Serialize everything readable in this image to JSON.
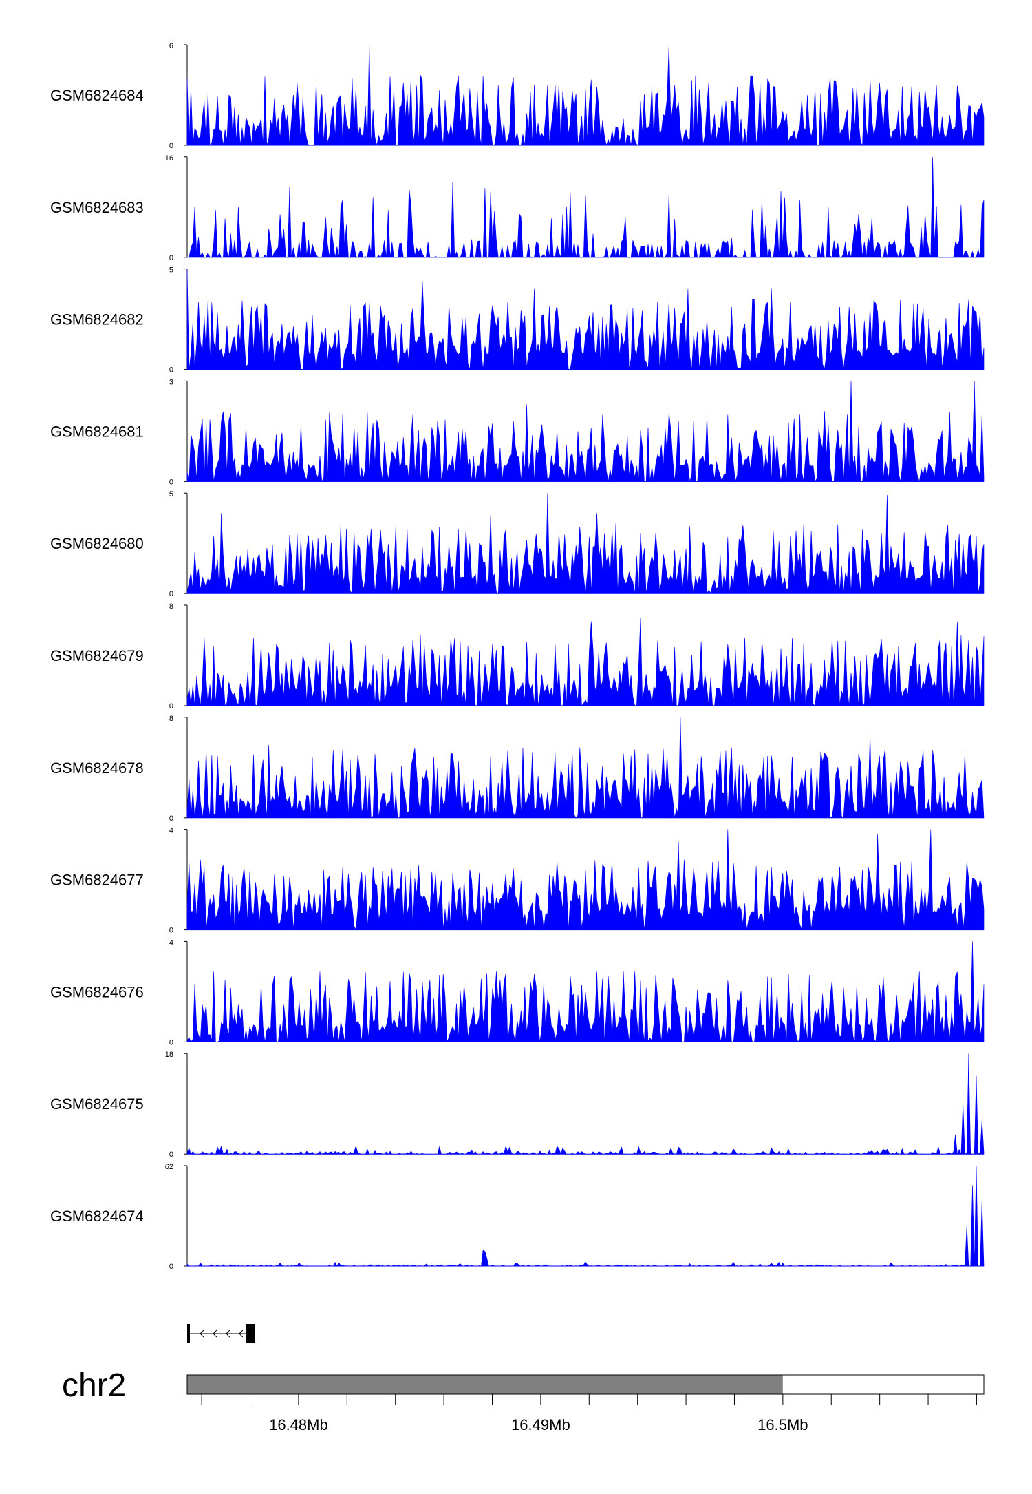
{
  "colors": {
    "signal": "#0000ff",
    "axis": "#000000",
    "ideogram_filled": "#808080",
    "ideogram_empty": "#ffffff"
  },
  "chart_data": {
    "type": "area",
    "title": "",
    "chromosome": "chr2",
    "x_range_mb": [
      16.4754,
      16.5083
    ],
    "x_ticks": [
      {
        "value": 16.48,
        "label": "16.48Mb"
      },
      {
        "value": 16.49,
        "label": "16.49Mb"
      },
      {
        "value": 16.5,
        "label": "16.5Mb"
      }
    ],
    "x_minor_step_mb": 0.002,
    "ideogram": {
      "filled_range_mb": [
        16.4754,
        16.5
      ],
      "open_range_mb": [
        16.5,
        16.5083
      ]
    },
    "gene_model": {
      "strand": "-",
      "start_mb": 16.4754,
      "end_mb": 16.4782,
      "exons_mb": [
        [
          16.4754,
          16.47549
        ],
        [
          16.47783,
          16.4782
        ]
      ]
    },
    "tracks": [
      {
        "name": "GSM6824684",
        "ymax": 6,
        "ymin": 0,
        "seed": 11,
        "density": 0.62,
        "gap": 0.12,
        "spikes": [
          [
            16.4829,
            6
          ],
          [
            16.4953,
            6
          ],
          [
            16.4754,
            4
          ],
          [
            16.4798,
            3
          ],
          [
            16.4865,
            3.5
          ],
          [
            16.4996,
            3.5
          ],
          [
            16.5079,
            2
          ]
        ]
      },
      {
        "name": "GSM6824683",
        "ymax": 16,
        "ymin": 0,
        "seed": 23,
        "density": 0.35,
        "gap": 0.45,
        "spikes": [
          [
            16.4864,
            12
          ],
          [
            16.5062,
            16
          ],
          [
            16.4757,
            8
          ],
          [
            16.4775,
            8
          ],
          [
            16.4831,
            8
          ],
          [
            16.5019,
            8
          ],
          [
            16.5059,
            7
          ]
        ]
      },
      {
        "name": "GSM6824682",
        "ymax": 5,
        "ymin": 0,
        "seed": 31,
        "density": 0.82,
        "gap": 0.05,
        "spikes": [
          [
            16.4754,
            5
          ],
          [
            16.4851,
            4.4
          ],
          [
            16.4897,
            4
          ],
          [
            16.4961,
            4
          ],
          [
            16.4995,
            4
          ]
        ]
      },
      {
        "name": "GSM6824681",
        "ymax": 3,
        "ymin": 0,
        "seed": 47,
        "density": 0.7,
        "gap": 0.1,
        "spikes": [
          [
            16.4894,
            2.3
          ],
          [
            16.4921,
            1.6
          ],
          [
            16.5028,
            3
          ],
          [
            16.5079,
            3
          ],
          [
            16.4762,
            1.8
          ],
          [
            16.4791,
            1.4
          ]
        ]
      },
      {
        "name": "GSM6824680",
        "ymax": 5,
        "ymin": 0,
        "seed": 53,
        "density": 0.78,
        "gap": 0.06,
        "spikes": [
          [
            16.4903,
            5
          ],
          [
            16.5043,
            4.9
          ],
          [
            16.4768,
            4
          ],
          [
            16.4879,
            3.9
          ],
          [
            16.4923,
            4
          ]
        ]
      },
      {
        "name": "GSM6824679",
        "ymax": 8,
        "ymin": 0,
        "seed": 67,
        "density": 0.74,
        "gap": 0.08,
        "spikes": [
          [
            16.4941,
            7
          ],
          [
            16.4921,
            6.7
          ],
          [
            16.5072,
            6.7
          ],
          [
            16.5055,
            5
          ],
          [
            16.4828,
            4.8
          ],
          [
            16.4813,
            5
          ]
        ]
      },
      {
        "name": "GSM6824678",
        "ymax": 8,
        "ymin": 0,
        "seed": 79,
        "density": 0.72,
        "gap": 0.08,
        "spikes": [
          [
            16.4958,
            8
          ],
          [
            16.5036,
            6.6
          ],
          [
            16.4788,
            5.8
          ],
          [
            16.4916,
            5.6
          ],
          [
            16.4944,
            5.1
          ]
        ]
      },
      {
        "name": "GSM6824677",
        "ymax": 4,
        "ymin": 0,
        "seed": 89,
        "density": 0.85,
        "gap": 0.04,
        "spikes": [
          [
            16.4977,
            4
          ],
          [
            16.5061,
            4
          ],
          [
            16.5039,
            3.8
          ],
          [
            16.4957,
            3.5
          ],
          [
            16.4761,
            2.5
          ]
        ]
      },
      {
        "name": "GSM6824676",
        "ymax": 4,
        "ymin": 0,
        "seed": 97,
        "density": 0.7,
        "gap": 0.1,
        "spikes": [
          [
            16.5078,
            4
          ],
          [
            16.4882,
            2.8
          ],
          [
            16.4934,
            2.8
          ],
          [
            16.4765,
            2.8
          ],
          [
            16.4809,
            2.8
          ]
        ]
      },
      {
        "name": "GSM6824675",
        "ymax": 18,
        "ymin": 0,
        "seed": 101,
        "density": 0.55,
        "gap": 0.02,
        "lowmax": 1.5,
        "spikes": [
          [
            16.5077,
            18
          ],
          [
            16.508,
            14
          ],
          [
            16.5074,
            9
          ],
          [
            16.5082,
            6
          ],
          [
            16.5071,
            3.5
          ]
        ]
      },
      {
        "name": "GSM6824674",
        "ymax": 62,
        "ymin": 0,
        "seed": 113,
        "density": 0.5,
        "gap": 0.02,
        "lowmax": 2.5,
        "spikes": [
          [
            16.508,
            62
          ],
          [
            16.5078,
            50
          ],
          [
            16.5082,
            40
          ],
          [
            16.5076,
            25
          ],
          [
            16.4876,
            10
          ],
          [
            16.4877,
            9
          ],
          [
            16.4878,
            5
          ]
        ]
      }
    ]
  }
}
